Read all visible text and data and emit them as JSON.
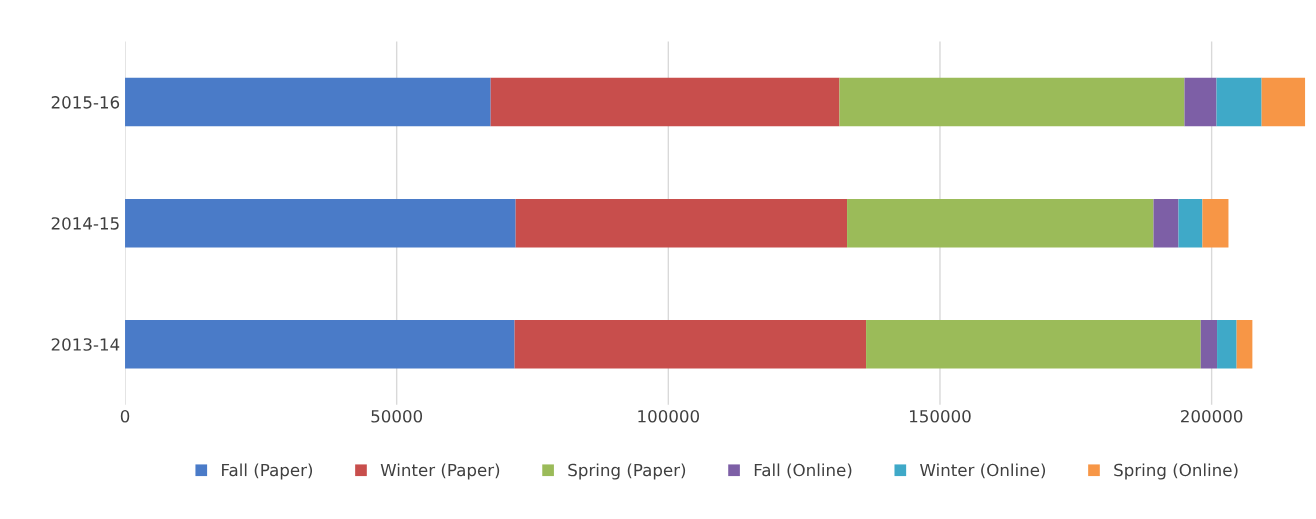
{
  "chart_data": {
    "type": "bar",
    "orientation": "horizontal",
    "stacked": true,
    "categories": [
      "2015-16",
      "2014-15",
      "2013-14"
    ],
    "series": [
      {
        "name": "Fall (Paper)",
        "color": "#4a7bc8",
        "values": [
          67300,
          71900,
          71700
        ]
      },
      {
        "name": "Winter (Paper)",
        "color": "#c84e4c",
        "values": [
          64200,
          61000,
          64700
        ]
      },
      {
        "name": "Spring (Paper)",
        "color": "#9bbb59",
        "values": [
          63500,
          56400,
          61600
        ]
      },
      {
        "name": "Fall (Online)",
        "color": "#7d5fa6",
        "values": [
          5900,
          4600,
          3000
        ]
      },
      {
        "name": "Winter (Online)",
        "color": "#3fa9c8",
        "values": [
          8300,
          4400,
          3600
        ]
      },
      {
        "name": "Spring (Online)",
        "color": "#f79646",
        "values": [
          8000,
          4800,
          2900
        ]
      }
    ],
    "xlim": [
      0,
      218000
    ],
    "xticks": [
      0,
      50000,
      100000,
      150000,
      200000
    ],
    "grid": "x",
    "legend": "bottom"
  }
}
